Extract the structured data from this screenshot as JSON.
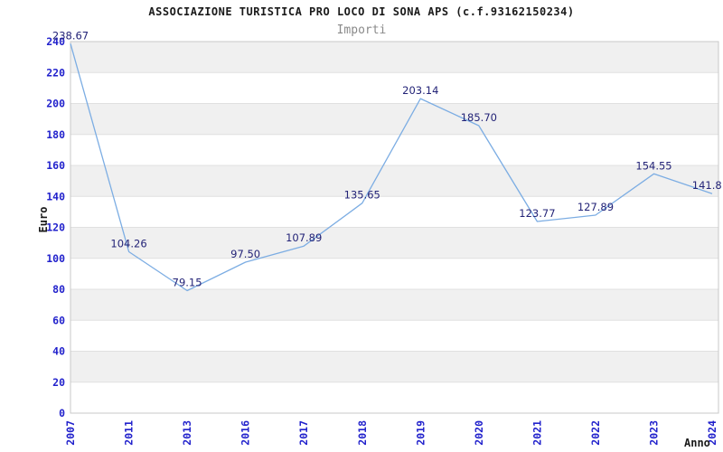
{
  "chart_data": {
    "type": "line",
    "title": "ASSOCIAZIONE TURISTICA PRO LOCO DI SONA APS (c.f.93162150234)",
    "subtitle": "Importi",
    "xlabel": "Anno",
    "ylabel": "Euro",
    "categories": [
      "2007",
      "2011",
      "2013",
      "2016",
      "2017",
      "2018",
      "2019",
      "2020",
      "2021",
      "2022",
      "2023",
      "2024"
    ],
    "values": [
      238.67,
      104.26,
      79.15,
      97.5,
      107.89,
      135.65,
      203.14,
      185.7,
      123.77,
      127.89,
      154.55,
      141.8
    ],
    "point_labels": [
      "238.67",
      "104.26",
      "79.15",
      "97.50",
      "107.89",
      "135.65",
      "203.14",
      "185.70",
      "123.77",
      "127.89",
      "154.55",
      "141.8"
    ],
    "ylim": [
      0,
      240
    ],
    "yticks": [
      0,
      20,
      40,
      60,
      80,
      100,
      120,
      140,
      160,
      180,
      200,
      220,
      240
    ],
    "grid": "horizontal",
    "legend": "none",
    "banding": "alternating horizontal bands every 20 units, gray on 20-40,60-80,...,220-240",
    "colors": {
      "line": "#7cade3",
      "point_label": "#232377",
      "tick_label": "#2222cc",
      "band": "#f0f0f0",
      "gridline": "#e0e0e0",
      "border": "#c8c8c8",
      "title": "#1a1a1a",
      "subtitle": "#8a8a8a",
      "axis_title": "#1a1a1a",
      "background": "#ffffff"
    }
  }
}
